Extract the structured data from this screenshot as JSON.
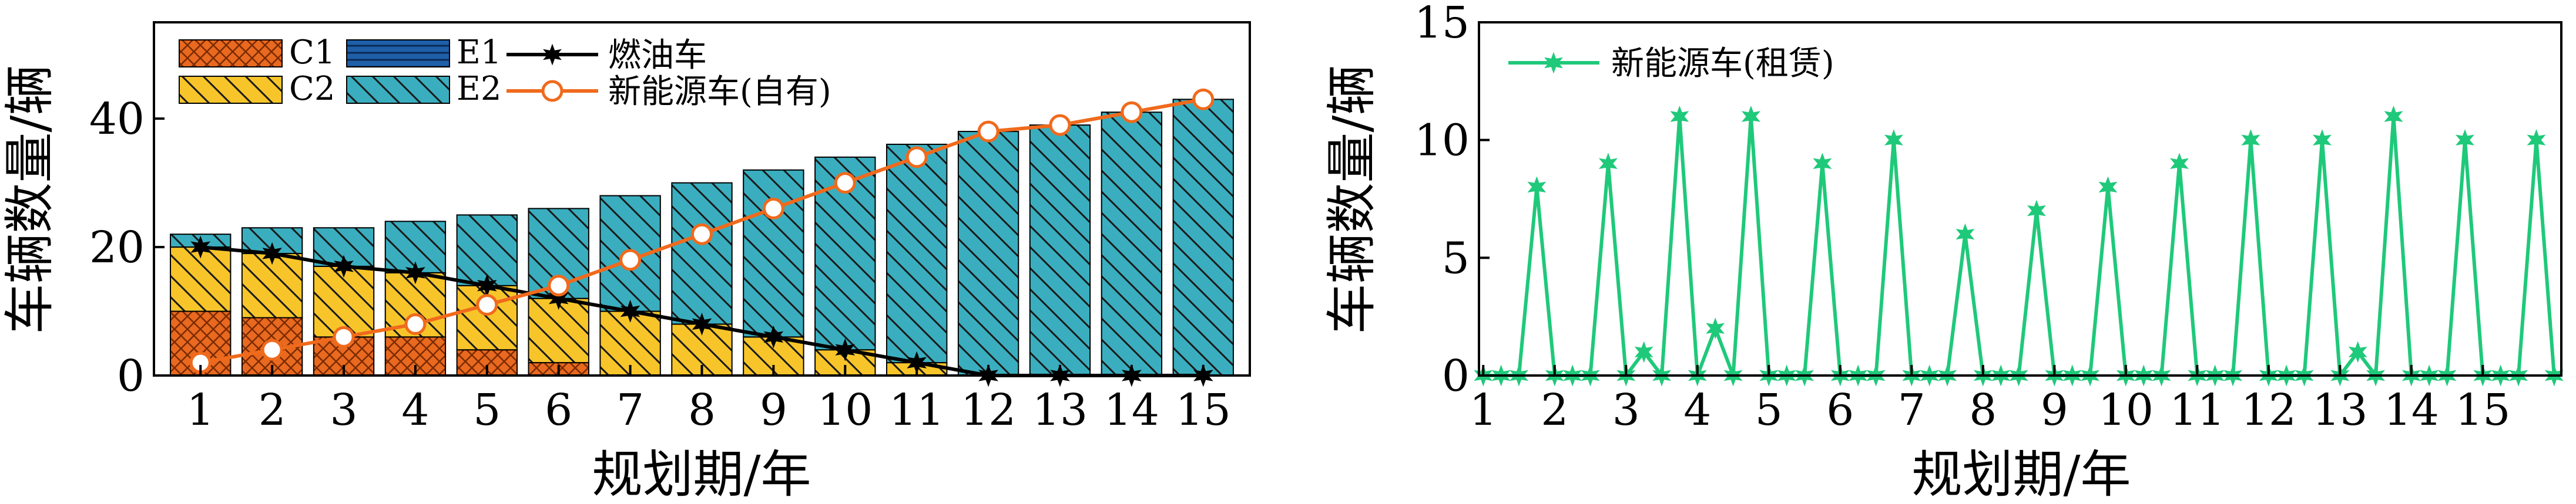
{
  "chart_data": [
    {
      "type": "bar",
      "stacked": true,
      "xlabel": "规划期/年",
      "ylabel": "车辆数量/辆",
      "ylim": [
        0,
        55
      ],
      "yticks": [
        0,
        20,
        40
      ],
      "categories": [
        "1",
        "2",
        "3",
        "4",
        "5",
        "6",
        "7",
        "8",
        "9",
        "10",
        "11",
        "12",
        "13",
        "14",
        "15"
      ],
      "series": [
        {
          "name": "C1",
          "kind": "bar",
          "color": "#e8691f",
          "hatch": "cross",
          "values": [
            10,
            9,
            6,
            6,
            4,
            2,
            0,
            0,
            0,
            0,
            0,
            0,
            0,
            0,
            0
          ]
        },
        {
          "name": "C2",
          "kind": "bar",
          "color": "#f7c52a",
          "hatch": "back",
          "values": [
            10,
            10,
            11,
            10,
            10,
            10,
            10,
            8,
            6,
            4,
            2,
            0,
            0,
            0,
            0
          ]
        },
        {
          "name": "E1",
          "kind": "bar",
          "color": "#1f5fa8",
          "hatch": "horizontal",
          "values": [
            0,
            0,
            0,
            0,
            0,
            0,
            0,
            0,
            0,
            0,
            0,
            0,
            0,
            0,
            0
          ]
        },
        {
          "name": "E2",
          "kind": "bar",
          "color": "#3aaebf",
          "hatch": "back",
          "values": [
            2,
            4,
            6,
            8,
            11,
            14,
            18,
            22,
            26,
            30,
            34,
            38,
            39,
            41,
            43
          ]
        },
        {
          "name": "燃油车",
          "kind": "line",
          "color": "#000000",
          "marker": "star",
          "values": [
            20,
            19,
            17,
            16,
            14,
            12,
            10,
            8,
            6,
            4,
            2,
            0,
            0,
            0,
            0
          ]
        },
        {
          "name": "新能源车(自有)",
          "kind": "line",
          "color": "#f06a1c",
          "marker": "circle",
          "values": [
            2,
            4,
            6,
            8,
            11,
            14,
            18,
            22,
            26,
            30,
            34,
            38,
            39,
            41,
            43
          ]
        }
      ],
      "legend": "top-left"
    },
    {
      "type": "line",
      "xlabel": "规划期/年",
      "ylabel": "车辆数量/辆",
      "ylim": [
        0,
        15
      ],
      "yticks": [
        0,
        5,
        10,
        15
      ],
      "xlim": [
        0.94,
        16.1
      ],
      "xticks": [
        "1",
        "2",
        "3",
        "4",
        "5",
        "6",
        "7",
        "8",
        "9",
        "10",
        "11",
        "12",
        "13",
        "14",
        "15"
      ],
      "series": [
        {
          "name": "新能源车(租赁)",
          "color": "#1fc97a",
          "marker": "star",
          "x": [
            1,
            1.25,
            1.5,
            1.75,
            2,
            2.25,
            2.5,
            2.75,
            3,
            3.25,
            3.5,
            3.75,
            4,
            4.25,
            4.5,
            4.75,
            5,
            5.25,
            5.5,
            5.75,
            6,
            6.25,
            6.5,
            6.75,
            7,
            7.25,
            7.5,
            7.75,
            8,
            8.25,
            8.5,
            8.75,
            9,
            9.25,
            9.5,
            9.75,
            10,
            10.25,
            10.5,
            10.75,
            11,
            11.25,
            11.5,
            11.75,
            12,
            12.25,
            12.5,
            12.75,
            13,
            13.25,
            13.5,
            13.75,
            14,
            14.25,
            14.5,
            14.75,
            15,
            15.25,
            15.5,
            15.75,
            16
          ],
          "values": [
            0,
            0,
            0,
            8,
            0,
            0,
            0,
            9,
            0,
            1,
            0,
            11,
            0,
            2,
            0,
            11,
            0,
            0,
            0,
            9,
            0,
            0,
            0,
            10,
            0,
            0,
            0,
            6,
            0,
            0,
            0,
            7,
            0,
            0,
            0,
            8,
            0,
            0,
            0,
            9,
            0,
            0,
            0,
            10,
            0,
            0,
            0,
            10,
            0,
            1,
            0,
            11,
            0,
            0,
            0,
            10,
            0,
            0,
            0,
            10,
            0
          ]
        }
      ],
      "legend": "top-left"
    }
  ]
}
